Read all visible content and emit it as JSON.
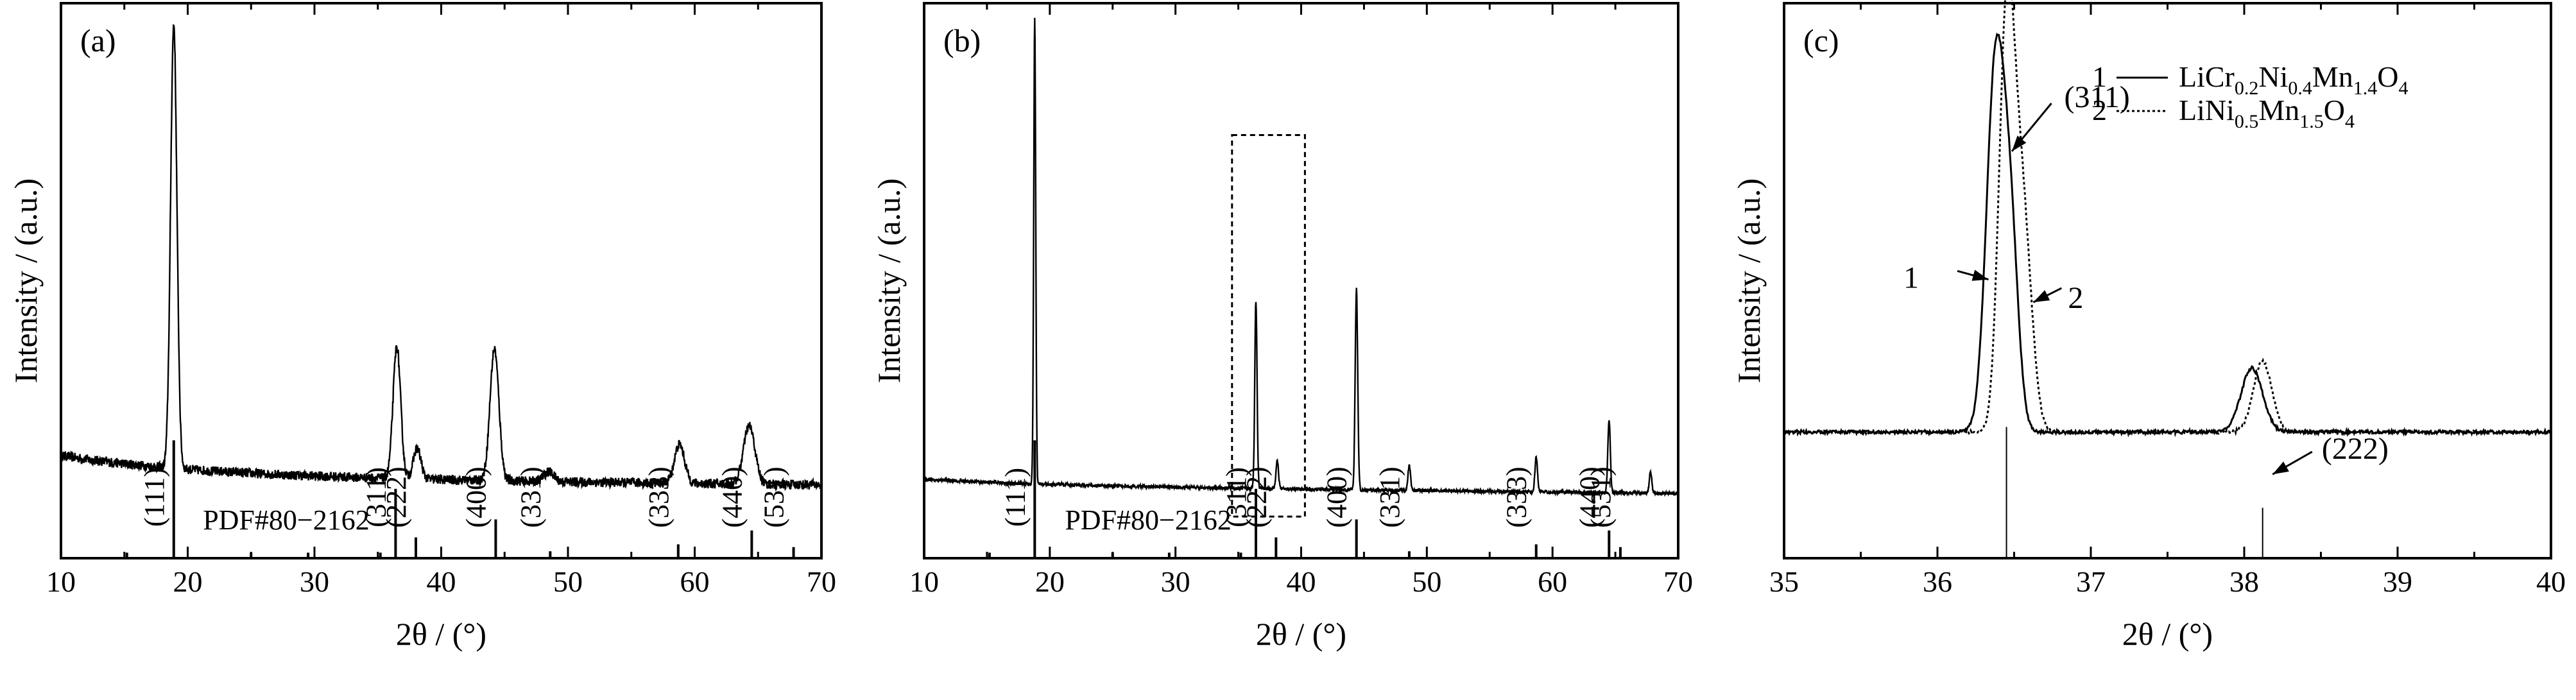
{
  "chart_data": [
    {
      "type": "line",
      "panel_label": "(a)",
      "xlabel": "2θ / (°)",
      "ylabel": "Intensity / (a.u.)",
      "xlim": [
        10,
        70
      ],
      "xticks": [
        10,
        20,
        30,
        40,
        50,
        60,
        70
      ],
      "reference_label": "PDF#80−2162",
      "baseline": 0.58,
      "noise": 0.035,
      "decay": [
        0.16,
        0.15
      ],
      "peaks": [
        {
          "x": 18.9,
          "h": 3.2,
          "w": 0.25
        },
        {
          "x": 36.5,
          "h": 0.95,
          "w": 0.3
        },
        {
          "x": 38.1,
          "h": 0.22,
          "w": 0.3
        },
        {
          "x": 44.2,
          "h": 0.95,
          "w": 0.35
        },
        {
          "x": 48.5,
          "h": 0.07,
          "w": 0.4
        },
        {
          "x": 58.8,
          "h": 0.28,
          "w": 0.4
        },
        {
          "x": 64.3,
          "h": 0.42,
          "w": 0.45
        }
      ],
      "reference_lines": [
        {
          "x": 15.2,
          "h": 0.04,
          "label": ""
        },
        {
          "x": 18.9,
          "h": 0.85,
          "label": "(111)"
        },
        {
          "x": 25.0,
          "h": 0.04,
          "label": ""
        },
        {
          "x": 29.5,
          "h": 0.04,
          "label": ""
        },
        {
          "x": 35.2,
          "h": 0.04,
          "label": ""
        },
        {
          "x": 36.4,
          "h": 0.5,
          "label": "(311)"
        },
        {
          "x": 38.0,
          "h": 0.15,
          "label": "(222)"
        },
        {
          "x": 44.3,
          "h": 0.28,
          "label": "(400)"
        },
        {
          "x": 48.6,
          "h": 0.05,
          "label": "(331)"
        },
        {
          "x": 58.7,
          "h": 0.1,
          "label": "(333)"
        },
        {
          "x": 64.5,
          "h": 0.2,
          "label": "(440)"
        },
        {
          "x": 67.8,
          "h": 0.08,
          "label": "(531)"
        }
      ]
    },
    {
      "type": "line",
      "panel_label": "(b)",
      "xlabel": "2θ / (°)",
      "ylabel": "Intensity / (a.u.)",
      "xlim": [
        10,
        70
      ],
      "xticks": [
        10,
        20,
        30,
        40,
        50,
        60,
        70
      ],
      "reference_label": "PDF#80−2162",
      "baseline": 0.52,
      "noise": 0.012,
      "decay": [
        0.05,
        0.15
      ],
      "peaks": [
        {
          "x": 18.8,
          "h": 3.35,
          "w": 0.08
        },
        {
          "x": 36.4,
          "h": 1.35,
          "w": 0.09
        },
        {
          "x": 38.1,
          "h": 0.2,
          "w": 0.1
        },
        {
          "x": 44.4,
          "h": 1.45,
          "w": 0.1
        },
        {
          "x": 48.6,
          "h": 0.18,
          "w": 0.1
        },
        {
          "x": 58.7,
          "h": 0.25,
          "w": 0.1
        },
        {
          "x": 64.5,
          "h": 0.52,
          "w": 0.1
        },
        {
          "x": 67.8,
          "h": 0.15,
          "w": 0.1
        }
      ],
      "reference_lines": [
        {
          "x": 15.2,
          "h": 0.04,
          "label": ""
        },
        {
          "x": 18.8,
          "h": 0.85,
          "label": "(111)"
        },
        {
          "x": 25.0,
          "h": 0.04,
          "label": ""
        },
        {
          "x": 29.5,
          "h": 0.04,
          "label": ""
        },
        {
          "x": 35.2,
          "h": 0.04,
          "label": ""
        },
        {
          "x": 36.4,
          "h": 0.5,
          "label": "(311)"
        },
        {
          "x": 38.0,
          "h": 0.15,
          "label": "(222)"
        },
        {
          "x": 44.4,
          "h": 0.28,
          "label": "(400)"
        },
        {
          "x": 48.6,
          "h": 0.05,
          "label": "(331)"
        },
        {
          "x": 58.7,
          "h": 0.1,
          "label": "(333)"
        },
        {
          "x": 64.5,
          "h": 0.2,
          "label": "(440)"
        },
        {
          "x": 65.4,
          "h": 0.08,
          "label": "(531)"
        }
      ],
      "highlight_box": {
        "x": [
          34.5,
          40.3
        ],
        "y": [
          0.3,
          3.05
        ]
      }
    },
    {
      "type": "line",
      "panel_label": "(c)",
      "xlabel": "2θ / (°)",
      "ylabel": "Intensity / (a.u.)",
      "xlim": [
        35,
        40
      ],
      "xticks": [
        35,
        36,
        37,
        38,
        39,
        40
      ],
      "series": [
        {
          "name": "LiCr0.2Ni0.4Mn1.4O4",
          "legend_number": "1",
          "legend_formula": [
            [
              "LiCr",
              ""
            ],
            [
              "0.2",
              "sub"
            ],
            [
              "Ni",
              ""
            ],
            [
              "0.4",
              "sub"
            ],
            [
              "Mn",
              ""
            ],
            [
              "1.4",
              "sub"
            ],
            [
              "O",
              ""
            ],
            [
              "4",
              "sub"
            ]
          ],
          "style": "solid",
          "peaks": [
            {
              "x": 36.38,
              "h": 2.2,
              "w": 0.06
            },
            {
              "x": 36.48,
              "h": 1.0,
              "w": 0.05
            },
            {
              "x": 38.05,
              "h": 0.38,
              "w": 0.07
            }
          ]
        },
        {
          "name": "LiNi0.5Mn1.5O4",
          "legend_number": "2",
          "legend_formula": [
            [
              "LiNi",
              ""
            ],
            [
              "0.5",
              "sub"
            ],
            [
              "Mn",
              ""
            ],
            [
              "1.5",
              "sub"
            ],
            [
              "O",
              ""
            ],
            [
              "4",
              "sub"
            ]
          ],
          "style": "dotted",
          "peaks": [
            {
              "x": 36.45,
              "h": 2.35,
              "w": 0.05
            },
            {
              "x": 36.55,
              "h": 1.35,
              "w": 0.06
            },
            {
              "x": 38.12,
              "h": 0.42,
              "w": 0.06
            }
          ]
        }
      ],
      "reference_lines": [
        {
          "x": 36.45,
          "h": 0.78
        },
        {
          "x": 38.12,
          "h": 0.3
        }
      ],
      "annotations": [
        {
          "text": "(311)",
          "x": 36.45,
          "y": 2.35
        },
        {
          "text": "1",
          "x": 36.36,
          "y": 1.62
        },
        {
          "text": "2",
          "x": 36.6,
          "y": 1.48
        },
        {
          "text": "(222)",
          "x": 38.15,
          "y": 0.45
        }
      ]
    }
  ]
}
